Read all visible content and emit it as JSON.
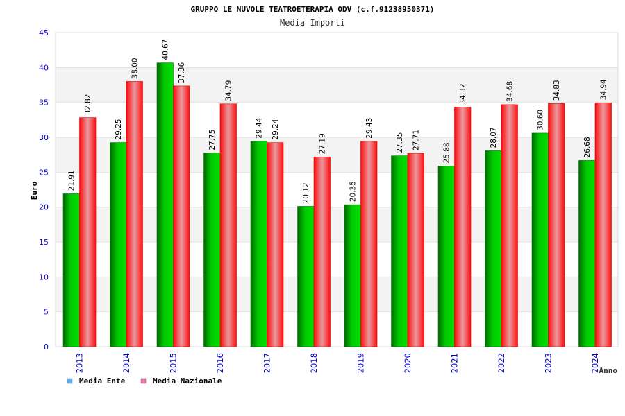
{
  "chart_data": {
    "type": "bar",
    "title": "GRUPPO LE NUVOLE TEATROETERAPIA ODV (c.f.91238950371)",
    "subtitle": "Media Importi",
    "xlabel": "Anno",
    "ylabel": "Euro",
    "ylim": [
      0,
      45
    ],
    "yticks": [
      0,
      5,
      10,
      15,
      20,
      25,
      30,
      35,
      40,
      45
    ],
    "categories": [
      "2013",
      "2014",
      "2015",
      "2016",
      "2017",
      "2018",
      "2019",
      "2020",
      "2021",
      "2022",
      "2023",
      "2024"
    ],
    "series": [
      {
        "name": "Media Ente",
        "values": [
          21.91,
          29.25,
          40.67,
          27.75,
          29.44,
          20.12,
          20.35,
          27.35,
          25.88,
          28.07,
          30.6,
          26.68
        ],
        "labels": [
          "21.91",
          "29.25",
          "40.67",
          "27.75",
          "29.44",
          "20.12",
          "20.35",
          "27.35",
          "25.88",
          "28.07",
          "30.60",
          "26.68"
        ]
      },
      {
        "name": "Media Nazionale",
        "values": [
          32.82,
          38.0,
          37.36,
          34.79,
          29.24,
          27.19,
          29.43,
          27.71,
          34.32,
          34.68,
          34.83,
          34.94
        ],
        "labels": [
          "32.82",
          "38.00",
          "37.36",
          "34.79",
          "29.24",
          "27.19",
          "29.43",
          "27.71",
          "34.32",
          "34.68",
          "34.83",
          "34.94"
        ]
      }
    ],
    "grid": true,
    "legend_position": "bottom-left",
    "legend_swatch_colors": [
      "#6aaeea",
      "#e17aa8"
    ],
    "bar_colors": [
      "#00b000",
      "#ff1a1a"
    ],
    "tick_label_color": "#0000cc",
    "band_color": "#f3f3f3"
  }
}
